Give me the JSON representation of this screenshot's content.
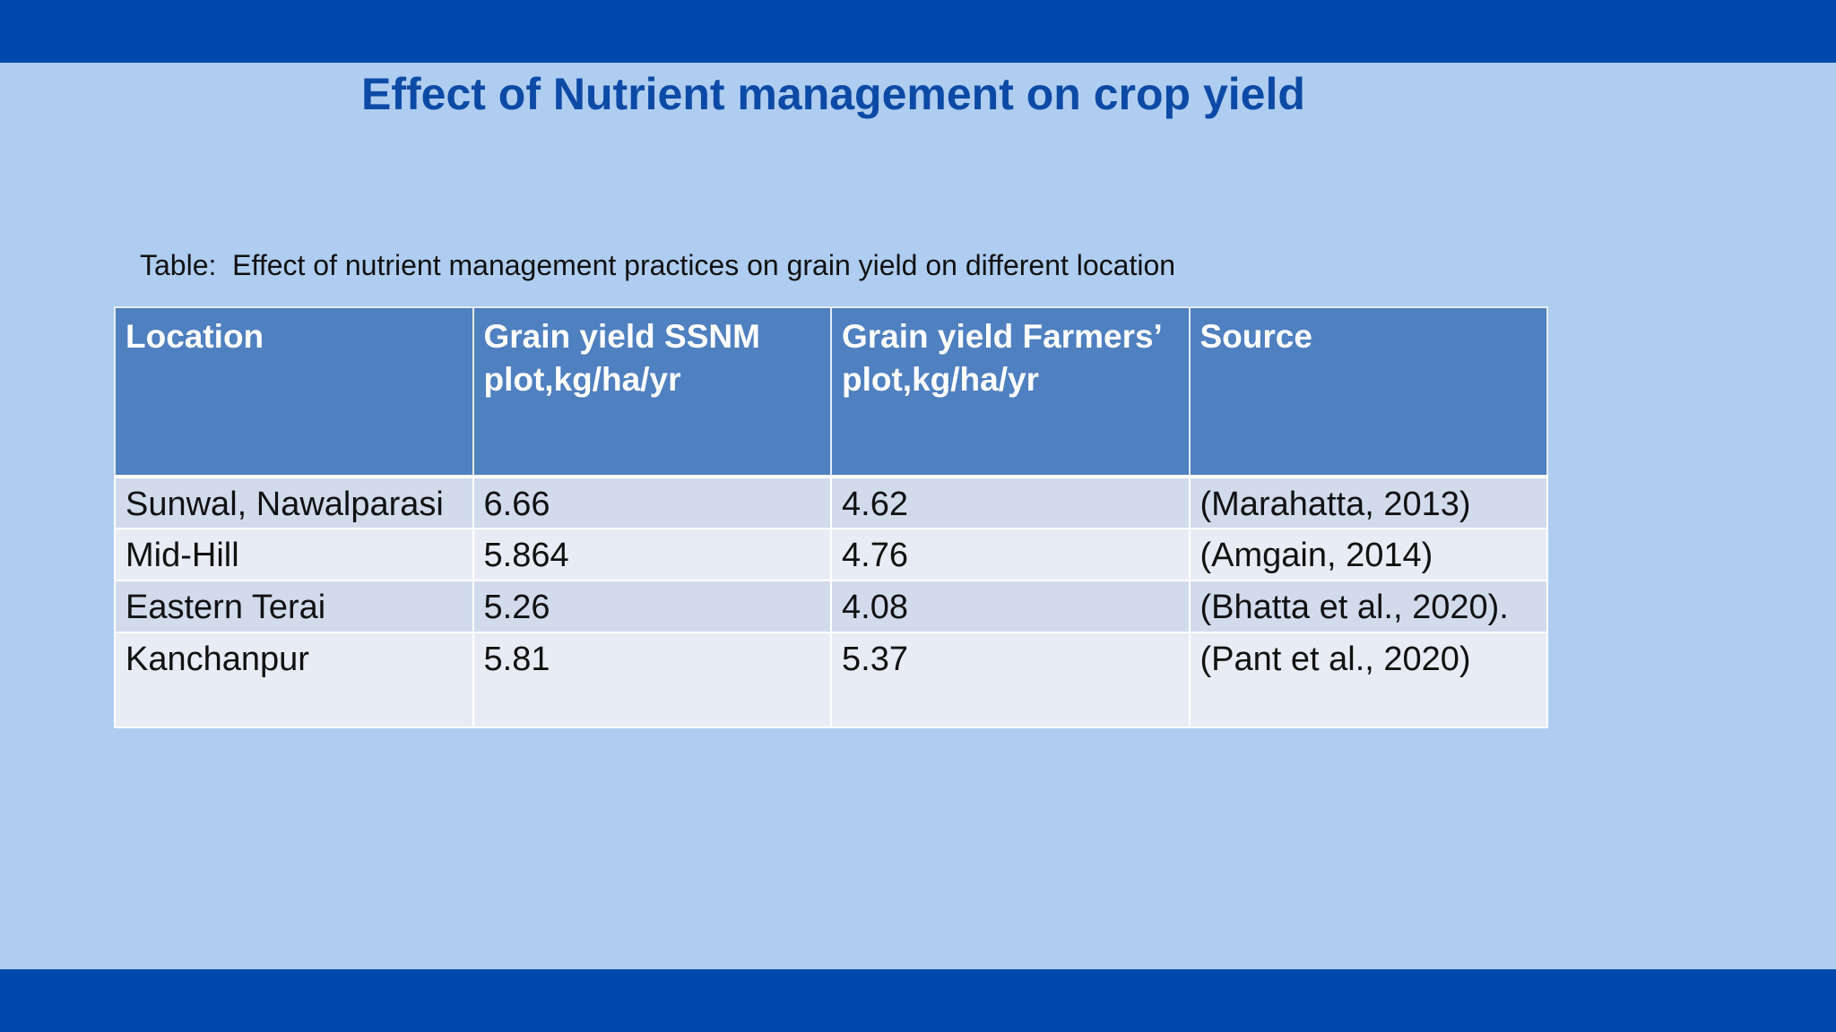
{
  "slide": {
    "title": "Effect of Nutrient management on crop yield",
    "caption": "Table:  Effect of nutrient management practices on grain yield on different location"
  },
  "table": {
    "headers": [
      "Location",
      "Grain yield SSNM plot,kg/ha/yr",
      "Grain yield Farmers’ plot,kg/ha/yr",
      "Source"
    ],
    "rows": [
      [
        "Sunwal, Nawalparasi",
        "6.66",
        "4.62",
        "(Marahatta, 2013)"
      ],
      [
        "Mid-Hill",
        "5.864",
        "4.76",
        "(Amgain, 2014)"
      ],
      [
        "Eastern Terai",
        "5.26",
        "4.08",
        "(Bhatta et al., 2020)."
      ],
      [
        "Kanchanpur",
        "5.81",
        "5.37",
        "(Pant et al., 2020)"
      ]
    ]
  },
  "colors": {
    "background": "#aecdf0",
    "bar": "#0048ad",
    "title": "#0c4aa6",
    "header_fill": "#4f80c0",
    "row_band_dark": "#d1dbec",
    "row_band_light": "#e8ecf4"
  }
}
